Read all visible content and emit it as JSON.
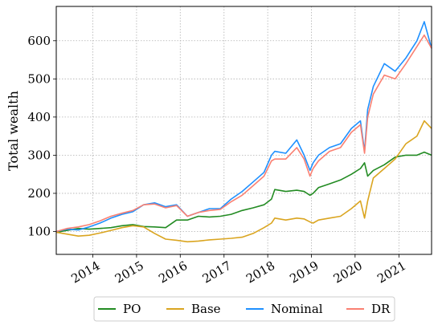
{
  "chart_data": {
    "type": "line",
    "title": "",
    "xlabel": "",
    "ylabel": "Total wealth",
    "xlim": [
      "2013-03-01",
      "2021-10-01"
    ],
    "ylim": [
      40,
      690
    ],
    "grid": true,
    "legend_position": "bottom-center",
    "x_ticks": [
      "2014",
      "2015",
      "2016",
      "2017",
      "2018",
      "2019",
      "2020",
      "2021"
    ],
    "y_ticks": [
      100,
      200,
      300,
      400,
      500,
      600
    ],
    "series": [
      {
        "name": "PO",
        "color": "#228B22",
        "x": [
          "2013-03-01",
          "2013-06-01",
          "2013-09-01",
          "2013-12-01",
          "2014-03-01",
          "2014-06-01",
          "2014-09-01",
          "2014-12-01",
          "2015-03-01",
          "2015-06-01",
          "2015-09-01",
          "2015-12-01",
          "2016-03-01",
          "2016-06-01",
          "2016-09-01",
          "2016-12-01",
          "2017-03-01",
          "2017-06-01",
          "2017-09-01",
          "2017-12-01",
          "2018-02-01",
          "2018-03-01",
          "2018-06-01",
          "2018-09-01",
          "2018-11-01",
          "2018-12-20",
          "2019-01-15",
          "2019-03-01",
          "2019-06-01",
          "2019-09-01",
          "2019-12-01",
          "2020-02-15",
          "2020-03-20",
          "2020-04-15",
          "2020-06-01",
          "2020-09-01",
          "2020-12-01",
          "2021-03-01",
          "2021-06-01",
          "2021-08-01",
          "2021-10-01"
        ],
        "values": [
          98,
          103,
          108,
          106,
          108,
          110,
          115,
          118,
          113,
          112,
          110,
          130,
          130,
          140,
          138,
          140,
          145,
          155,
          162,
          170,
          185,
          210,
          205,
          208,
          205,
          195,
          200,
          215,
          225,
          235,
          250,
          265,
          280,
          245,
          260,
          275,
          295,
          300,
          300,
          308,
          300
        ]
      },
      {
        "name": "Base",
        "color": "#DAA520",
        "x": [
          "2013-03-01",
          "2013-06-01",
          "2013-09-01",
          "2013-12-01",
          "2014-03-01",
          "2014-06-01",
          "2014-09-01",
          "2014-12-01",
          "2015-03-01",
          "2015-06-01",
          "2015-09-01",
          "2015-12-01",
          "2016-03-01",
          "2016-06-01",
          "2016-09-01",
          "2016-12-01",
          "2017-03-01",
          "2017-06-01",
          "2017-09-01",
          "2017-12-01",
          "2018-02-01",
          "2018-03-01",
          "2018-06-01",
          "2018-09-01",
          "2018-11-01",
          "2018-12-20",
          "2019-01-15",
          "2019-03-01",
          "2019-06-01",
          "2019-09-01",
          "2019-12-01",
          "2020-02-15",
          "2020-03-20",
          "2020-04-15",
          "2020-06-01",
          "2020-09-01",
          "2020-12-01",
          "2021-03-01",
          "2021-06-01",
          "2021-08-01",
          "2021-10-01"
        ],
        "values": [
          98,
          93,
          88,
          90,
          96,
          103,
          110,
          115,
          112,
          95,
          80,
          77,
          73,
          75,
          78,
          80,
          82,
          85,
          95,
          110,
          122,
          135,
          130,
          135,
          133,
          125,
          122,
          130,
          135,
          140,
          160,
          180,
          135,
          180,
          240,
          265,
          290,
          330,
          350,
          390,
          370
        ]
      },
      {
        "name": "Nominal",
        "color": "#1E90FF",
        "x": [
          "2013-03-01",
          "2013-06-01",
          "2013-09-01",
          "2013-12-01",
          "2014-03-01",
          "2014-06-01",
          "2014-09-01",
          "2014-12-01",
          "2015-03-01",
          "2015-06-01",
          "2015-09-01",
          "2015-12-01",
          "2016-03-01",
          "2016-06-01",
          "2016-09-01",
          "2016-12-01",
          "2017-03-01",
          "2017-06-01",
          "2017-09-01",
          "2017-12-01",
          "2018-02-01",
          "2018-03-01",
          "2018-06-01",
          "2018-09-01",
          "2018-11-01",
          "2018-12-20",
          "2019-01-15",
          "2019-03-01",
          "2019-06-01",
          "2019-09-01",
          "2019-12-01",
          "2020-02-15",
          "2020-03-20",
          "2020-04-15",
          "2020-06-01",
          "2020-09-01",
          "2020-12-01",
          "2021-03-01",
          "2021-06-01",
          "2021-08-01",
          "2021-10-01"
        ],
        "values": [
          100,
          106,
          104,
          112,
          122,
          135,
          145,
          152,
          170,
          175,
          165,
          170,
          140,
          150,
          160,
          160,
          185,
          205,
          230,
          255,
          300,
          310,
          305,
          340,
          300,
          260,
          280,
          300,
          320,
          330,
          370,
          390,
          310,
          420,
          480,
          540,
          520,
          555,
          600,
          650,
          580
        ]
      },
      {
        "name": "DR",
        "color": "#FA8072",
        "x": [
          "2013-03-01",
          "2013-06-01",
          "2013-09-01",
          "2013-12-01",
          "2014-03-01",
          "2014-06-01",
          "2014-09-01",
          "2014-12-01",
          "2015-03-01",
          "2015-06-01",
          "2015-09-01",
          "2015-12-01",
          "2016-03-01",
          "2016-06-01",
          "2016-09-01",
          "2016-12-01",
          "2017-03-01",
          "2017-06-01",
          "2017-09-01",
          "2017-12-01",
          "2018-02-01",
          "2018-03-01",
          "2018-06-01",
          "2018-09-01",
          "2018-11-01",
          "2018-12-20",
          "2019-01-15",
          "2019-03-01",
          "2019-06-01",
          "2019-09-01",
          "2019-12-01",
          "2020-02-15",
          "2020-03-20",
          "2020-04-15",
          "2020-06-01",
          "2020-09-01",
          "2020-12-01",
          "2021-03-01",
          "2021-06-01",
          "2021-08-01",
          "2021-10-01"
        ],
        "values": [
          100,
          108,
          112,
          118,
          128,
          140,
          148,
          155,
          170,
          172,
          162,
          168,
          140,
          150,
          155,
          158,
          178,
          195,
          220,
          245,
          285,
          290,
          290,
          320,
          290,
          245,
          265,
          285,
          310,
          320,
          360,
          380,
          305,
          400,
          460,
          510,
          500,
          540,
          585,
          615,
          580
        ]
      }
    ]
  }
}
